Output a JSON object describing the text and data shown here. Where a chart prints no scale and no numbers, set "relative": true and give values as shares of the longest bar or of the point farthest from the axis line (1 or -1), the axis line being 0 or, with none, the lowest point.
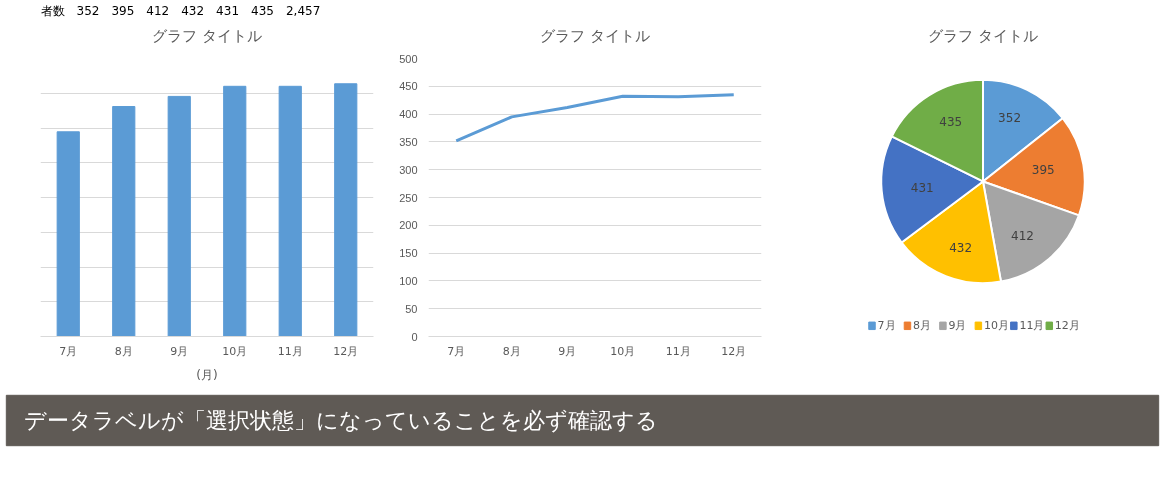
{
  "chart_data": [
    {
      "type": "bar",
      "title": "グラフ タイトル",
      "xlabel": "(月)",
      "categories": [
        "7月",
        "8月",
        "9月",
        "10月",
        "11月",
        "12月"
      ],
      "relative": true,
      "values": [
        0.81,
        0.91,
        0.95,
        0.99,
        0.99,
        1
      ],
      "color": "#5b9bd5",
      "grid": "y",
      "annotations": [
        "者数　352　395　412　432　431　435　2,457"
      ]
    },
    {
      "type": "line",
      "title": "グラフ タイトル",
      "categories": [
        "7月",
        "8月",
        "9月",
        "10月",
        "11月",
        "12月"
      ],
      "values": [
        352,
        395,
        412,
        432,
        431,
        435
      ],
      "color": "#5b9bd5",
      "ylim": [
        0,
        500
      ],
      "yticks": [
        0,
        50,
        100,
        150,
        200,
        250,
        300,
        350,
        400,
        450,
        500
      ],
      "grid": "y"
    },
    {
      "type": "pie",
      "title": "グラフ タイトル",
      "categories": [
        "7月",
        "8月",
        "9月",
        "10月",
        "11月",
        "12月"
      ],
      "values": [
        352,
        395,
        412,
        432,
        431,
        435
      ],
      "colors": [
        "#5b9bd5",
        "#ed7d31",
        "#a5a5a5",
        "#ffc000",
        "#4472c4",
        "#70ad47"
      ],
      "data_labels": true,
      "legend": "bottom",
      "annotations": [
        "データラベルが「選択状態」になっていることを必ず確認する"
      ]
    }
  ]
}
